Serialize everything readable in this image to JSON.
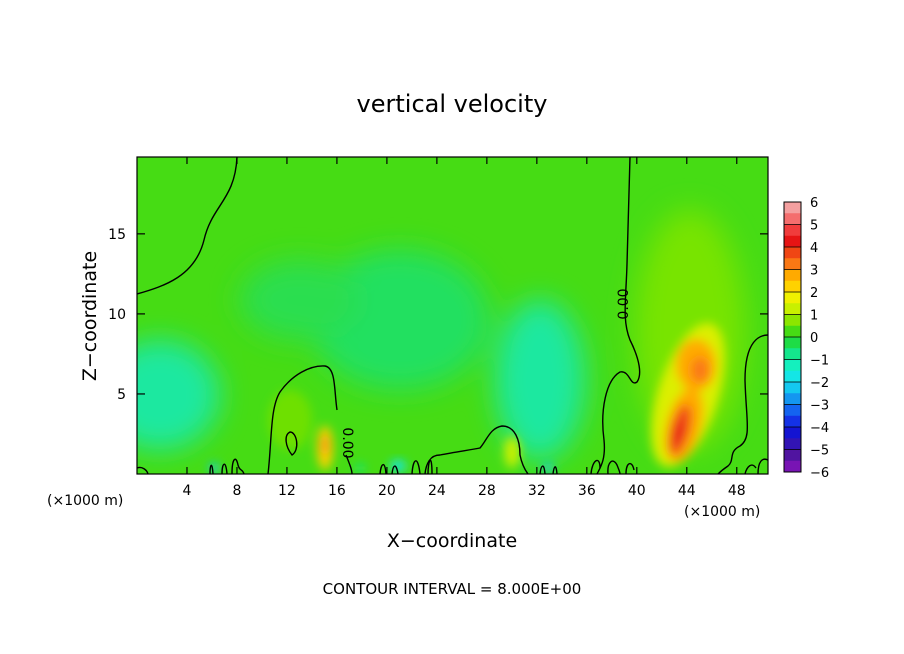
{
  "chart_data": {
    "type": "heatmap",
    "title": "vertical velocity",
    "xlabel": "X−coordinate",
    "ylabel": "Z−coordinate",
    "x_unit_label": "(×1000 m)",
    "footer": "CONTOUR INTERVAL = 8.000E+00",
    "xlim": [
      0,
      50.5
    ],
    "ylim": [
      0,
      19.8
    ],
    "x_ticks": [
      4,
      8,
      12,
      16,
      20,
      24,
      28,
      32,
      36,
      40,
      44,
      48
    ],
    "y_ticks": [
      5,
      10,
      15
    ],
    "colorbar": {
      "ticks": [
        "6",
        "5",
        "4",
        "3",
        "2",
        "1",
        "0",
        "−1",
        "−2",
        "−3",
        "−4",
        "−5",
        "−6"
      ],
      "levels": [
        {
          "range": [
            5.5,
            6
          ],
          "color": "#f4a0a0"
        },
        {
          "range": [
            5,
            5.5
          ],
          "color": "#f46e6e"
        },
        {
          "range": [
            4.5,
            5
          ],
          "color": "#f03c3c"
        },
        {
          "range": [
            4,
            4.5
          ],
          "color": "#e61414"
        },
        {
          "range": [
            3.5,
            4
          ],
          "color": "#f04614"
        },
        {
          "range": [
            3,
            3.5
          ],
          "color": "#fa7814"
        },
        {
          "range": [
            2.5,
            3
          ],
          "color": "#ffaa00"
        },
        {
          "range": [
            2,
            2.5
          ],
          "color": "#ffd200"
        },
        {
          "range": [
            1.5,
            2
          ],
          "color": "#f0f000"
        },
        {
          "range": [
            1,
            1.5
          ],
          "color": "#c8f000"
        },
        {
          "range": [
            0.5,
            1
          ],
          "color": "#8ce600"
        },
        {
          "range": [
            0,
            0.5
          ],
          "color": "#46dc14"
        },
        {
          "range": [
            -0.5,
            0
          ],
          "color": "#1edc46"
        },
        {
          "range": [
            -1,
            -0.5
          ],
          "color": "#14e68c"
        },
        {
          "range": [
            -1.5,
            -1
          ],
          "color": "#14f0be"
        },
        {
          "range": [
            -2,
            -1.5
          ],
          "color": "#14e6e6"
        },
        {
          "range": [
            -2.5,
            -2
          ],
          "color": "#14c8f0"
        },
        {
          "range": [
            -3,
            -2.5
          ],
          "color": "#1496f0"
        },
        {
          "range": [
            -3.5,
            -3
          ],
          "color": "#1464f0"
        },
        {
          "range": [
            -4,
            -3.5
          ],
          "color": "#1432e6"
        },
        {
          "range": [
            -4.5,
            -4
          ],
          "color": "#1414d2"
        },
        {
          "range": [
            -5,
            -4.5
          ],
          "color": "#3214b4"
        },
        {
          "range": [
            -5.5,
            -5
          ],
          "color": "#5014a0"
        },
        {
          "range": [
            -6,
            -5.5
          ],
          "color": "#7814b4"
        }
      ]
    },
    "contour_labels": [
      "0.00",
      "0.00"
    ],
    "field_features": [
      {
        "type": "updraft",
        "x": 43.2,
        "z": 3.0,
        "w": 5.0
      },
      {
        "type": "updraft",
        "x": 44.5,
        "z": 6.2,
        "w": 2.5
      },
      {
        "type": "updraft",
        "x": 15.0,
        "z": 2.0,
        "w": 3.0
      },
      {
        "type": "updraft",
        "x": 29.8,
        "z": 1.2,
        "w": 1.0
      },
      {
        "type": "downdraft",
        "x": 2.0,
        "z": 5.0,
        "w": -1.3
      },
      {
        "type": "downdraft",
        "x": 32.0,
        "z": 5.5,
        "w": -1.2
      },
      {
        "type": "downdraft",
        "x": 20.0,
        "z": 8.0,
        "w": -0.6
      }
    ]
  }
}
